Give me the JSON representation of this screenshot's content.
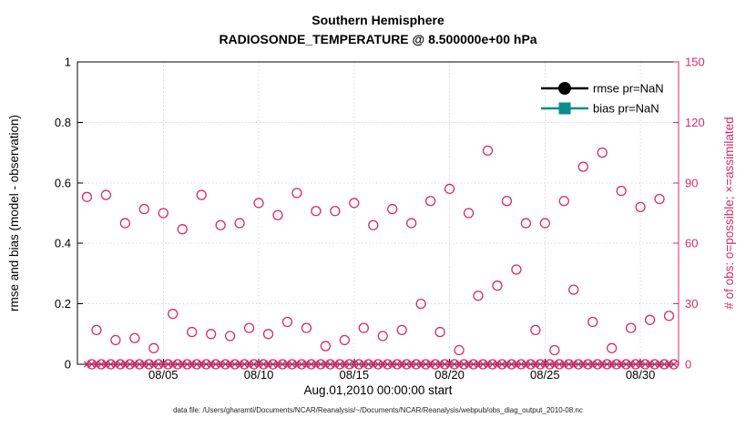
{
  "caption": "data file: /Users/gharamti/Documents/NCAR/Reanalysis/~/Documents/NCAR/Reanalysis/webpub/obs_diag_output_2010-08.nc",
  "chart_data": {
    "type": "scatter",
    "title": "Southern Hemisphere",
    "subtitle": "RADIOSONDE_TEMPERATURE @ 8.500000e+00 hPa",
    "xlabel": "Aug.01,2010 00:00:00 start",
    "ylabel_left": "rmse and bias (model - observation)",
    "ylabel_right": "# of obs: o=possible; ×=assimilated",
    "xlim_days": [
      0.5,
      32
    ],
    "ylim_left": [
      0,
      1
    ],
    "ylim_right": [
      0,
      150
    ],
    "grid": true,
    "x_ticks": [
      {
        "day": 5,
        "label": "08/05"
      },
      {
        "day": 10,
        "label": "08/10"
      },
      {
        "day": 15,
        "label": "08/15"
      },
      {
        "day": 20,
        "label": "08/20"
      },
      {
        "day": 25,
        "label": "08/25"
      },
      {
        "day": 30,
        "label": "08/30"
      }
    ],
    "y_ticks_left": [
      {
        "value": 0,
        "label": "0"
      },
      {
        "value": 0.2,
        "label": "0.2"
      },
      {
        "value": 0.4,
        "label": "0.4"
      },
      {
        "value": 0.6,
        "label": "0.6"
      },
      {
        "value": 0.8,
        "label": "0.8"
      },
      {
        "value": 1,
        "label": "1"
      }
    ],
    "y_ticks_right": [
      {
        "value": 0,
        "label": "0"
      },
      {
        "value": 30,
        "label": "30"
      },
      {
        "value": 60,
        "label": "60"
      },
      {
        "value": 90,
        "label": "90"
      },
      {
        "value": 120,
        "label": "120"
      },
      {
        "value": 150,
        "label": "150"
      }
    ],
    "legend": {
      "position": "top-right",
      "items": [
        {
          "label": "rmse pr=NaN",
          "color": "#000000",
          "marker": "circle"
        },
        {
          "label": "bias pr=NaN",
          "color": "#0e8c8c",
          "marker": "square"
        }
      ]
    },
    "colors": {
      "obs_pink": "#d62a6d",
      "bias_teal": "#0e8c8c",
      "rmse_black": "#000000",
      "grid": "#d9d9d9",
      "axis": "#000000",
      "background": "#ffffff"
    },
    "series": [
      {
        "name": "rmse",
        "pr": "NaN",
        "plotted": false
      },
      {
        "name": "bias",
        "pr": "NaN",
        "plotted": false
      }
    ],
    "obs": {
      "axis": "right",
      "bin_hours": [
        0,
        6,
        12,
        18
      ],
      "possible_marker": "o",
      "assimilated_marker": "x",
      "days": [
        {
          "date": "08/01",
          "possible": [
            83,
            0,
            17,
            0
          ],
          "assimilated": [
            0,
            0,
            0,
            0
          ]
        },
        {
          "date": "08/02",
          "possible": [
            84,
            0,
            12,
            0
          ],
          "assimilated": [
            0,
            0,
            0,
            0
          ]
        },
        {
          "date": "08/03",
          "possible": [
            70,
            0,
            13,
            0
          ],
          "assimilated": [
            0,
            0,
            0,
            0
          ]
        },
        {
          "date": "08/04",
          "possible": [
            77,
            0,
            8,
            0
          ],
          "assimilated": [
            0,
            0,
            0,
            0
          ]
        },
        {
          "date": "08/05",
          "possible": [
            75,
            0,
            25,
            0
          ],
          "assimilated": [
            0,
            0,
            0,
            0
          ]
        },
        {
          "date": "08/06",
          "possible": [
            67,
            0,
            16,
            0
          ],
          "assimilated": [
            0,
            0,
            0,
            0
          ]
        },
        {
          "date": "08/07",
          "possible": [
            84,
            0,
            15,
            0
          ],
          "assimilated": [
            0,
            0,
            0,
            0
          ]
        },
        {
          "date": "08/08",
          "possible": [
            69,
            0,
            14,
            0
          ],
          "assimilated": [
            0,
            0,
            0,
            0
          ]
        },
        {
          "date": "08/09",
          "possible": [
            70,
            0,
            18,
            0
          ],
          "assimilated": [
            0,
            0,
            0,
            0
          ]
        },
        {
          "date": "08/10",
          "possible": [
            80,
            0,
            15,
            0
          ],
          "assimilated": [
            0,
            0,
            0,
            0
          ]
        },
        {
          "date": "08/11",
          "possible": [
            74,
            0,
            21,
            0
          ],
          "assimilated": [
            0,
            0,
            0,
            0
          ]
        },
        {
          "date": "08/12",
          "possible": [
            85,
            0,
            18,
            0
          ],
          "assimilated": [
            0,
            0,
            0,
            0
          ]
        },
        {
          "date": "08/13",
          "possible": [
            76,
            0,
            9,
            0
          ],
          "assimilated": [
            0,
            0,
            0,
            0
          ]
        },
        {
          "date": "08/14",
          "possible": [
            76,
            0,
            12,
            0
          ],
          "assimilated": [
            0,
            0,
            0,
            0
          ]
        },
        {
          "date": "08/15",
          "possible": [
            80,
            0,
            18,
            0
          ],
          "assimilated": [
            0,
            0,
            0,
            0
          ]
        },
        {
          "date": "08/16",
          "possible": [
            69,
            0,
            14,
            0
          ],
          "assimilated": [
            0,
            0,
            0,
            0
          ]
        },
        {
          "date": "08/17",
          "possible": [
            77,
            0,
            17,
            0
          ],
          "assimilated": [
            0,
            0,
            0,
            0
          ]
        },
        {
          "date": "08/18",
          "possible": [
            70,
            0,
            30,
            0
          ],
          "assimilated": [
            0,
            0,
            0,
            0
          ]
        },
        {
          "date": "08/19",
          "possible": [
            81,
            0,
            16,
            0
          ],
          "assimilated": [
            0,
            0,
            0,
            0
          ]
        },
        {
          "date": "08/20",
          "possible": [
            87,
            0,
            7,
            0
          ],
          "assimilated": [
            0,
            0,
            0,
            0
          ]
        },
        {
          "date": "08/21",
          "possible": [
            75,
            0,
            34,
            0
          ],
          "assimilated": [
            0,
            0,
            0,
            0
          ]
        },
        {
          "date": "08/22",
          "possible": [
            106,
            0,
            39,
            0
          ],
          "assimilated": [
            0,
            0,
            0,
            0
          ]
        },
        {
          "date": "08/23",
          "possible": [
            81,
            0,
            47,
            0
          ],
          "assimilated": [
            0,
            0,
            0,
            0
          ]
        },
        {
          "date": "08/24",
          "possible": [
            70,
            0,
            17,
            0
          ],
          "assimilated": [
            0,
            0,
            0,
            0
          ]
        },
        {
          "date": "08/25",
          "possible": [
            70,
            0,
            7,
            0
          ],
          "assimilated": [
            0,
            0,
            0,
            0
          ]
        },
        {
          "date": "08/26",
          "possible": [
            81,
            0,
            37,
            0
          ],
          "assimilated": [
            0,
            0,
            0,
            0
          ]
        },
        {
          "date": "08/27",
          "possible": [
            98,
            0,
            21,
            0
          ],
          "assimilated": [
            0,
            0,
            0,
            0
          ]
        },
        {
          "date": "08/28",
          "possible": [
            105,
            0,
            8,
            0
          ],
          "assimilated": [
            0,
            0,
            0,
            0
          ]
        },
        {
          "date": "08/29",
          "possible": [
            86,
            0,
            18,
            0
          ],
          "assimilated": [
            0,
            0,
            0,
            0
          ]
        },
        {
          "date": "08/30",
          "possible": [
            78,
            0,
            22,
            0
          ],
          "assimilated": [
            0,
            0,
            0,
            0
          ]
        },
        {
          "date": "08/31",
          "possible": [
            82,
            0,
            24,
            0
          ],
          "assimilated": [
            0,
            0,
            0,
            0
          ]
        }
      ]
    }
  }
}
